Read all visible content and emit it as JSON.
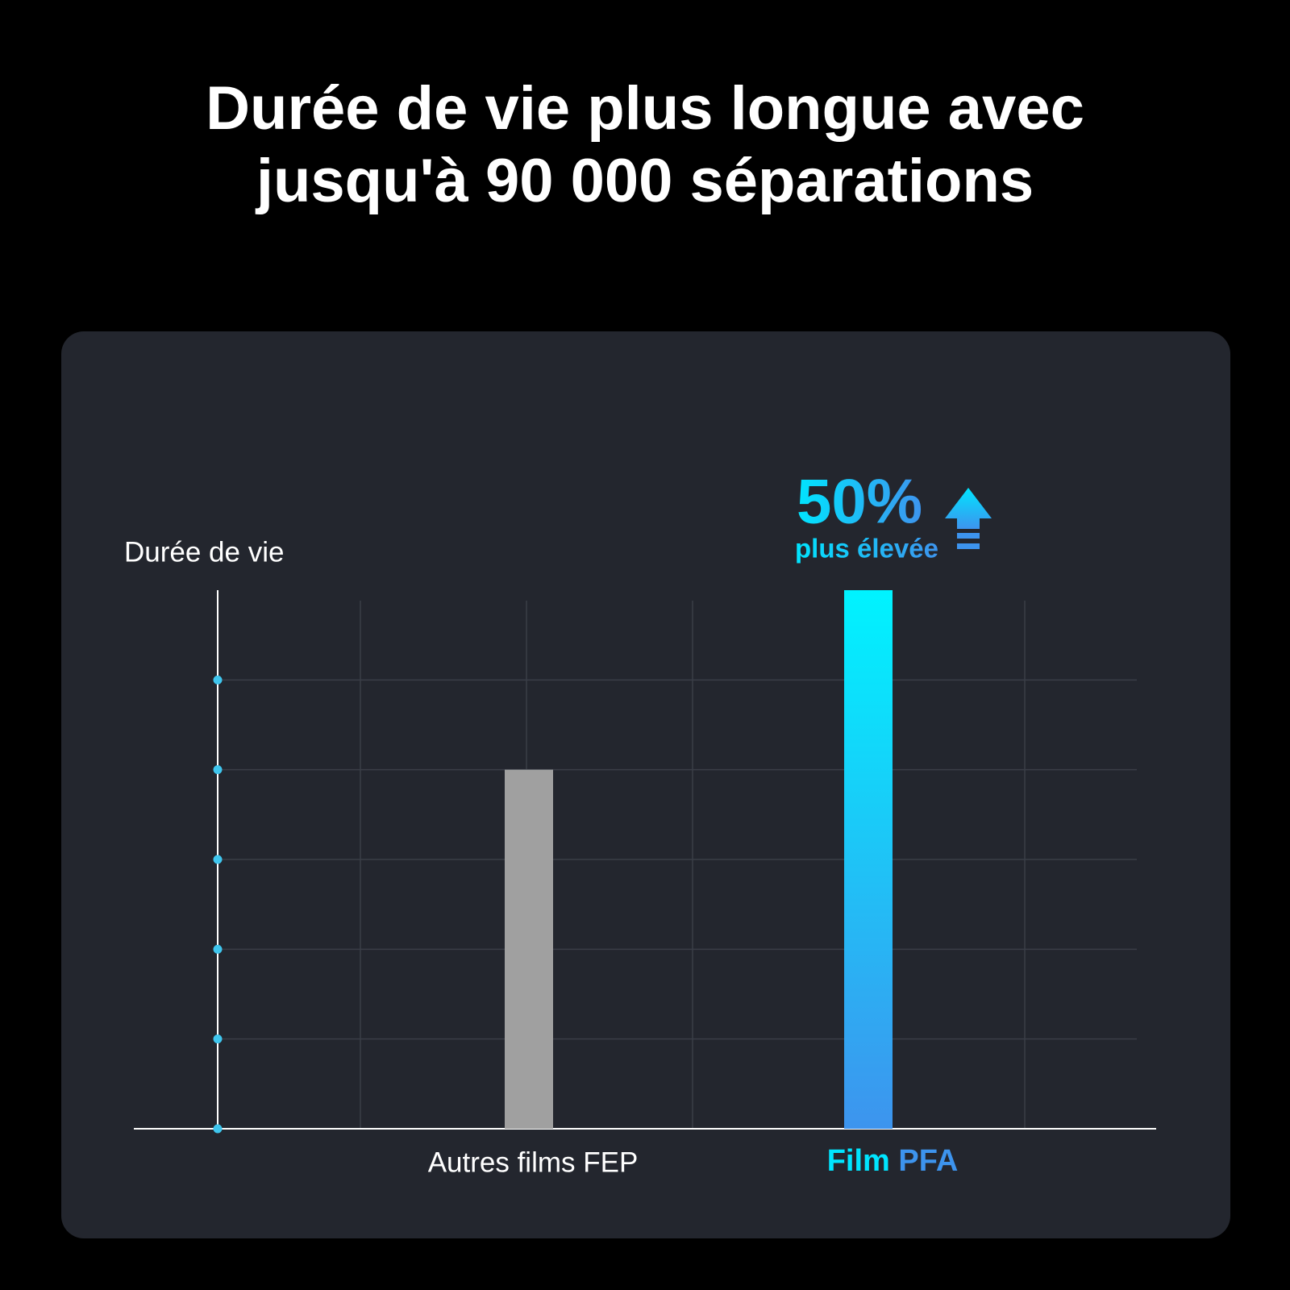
{
  "chart_data": {
    "type": "bar",
    "title": [
      "Durée de vie plus longue avec",
      "jusqu'à 90 000 séparations"
    ],
    "y_label": "Durée de vie",
    "categories": [
      "Autres films FEP",
      [
        "Film",
        "PFA"
      ]
    ],
    "values": [
      4,
      6
    ],
    "colors": [
      [
        "#a0a0a0",
        "#a0a0a0"
      ],
      [
        "#00f3ff",
        "#3d94ee"
      ]
    ],
    "ylim": [
      0,
      6
    ],
    "yticks": [
      0,
      1,
      2,
      3,
      4,
      5
    ],
    "grid": true,
    "annotation": {
      "headline": "50%",
      "text": "plus élevée"
    }
  }
}
